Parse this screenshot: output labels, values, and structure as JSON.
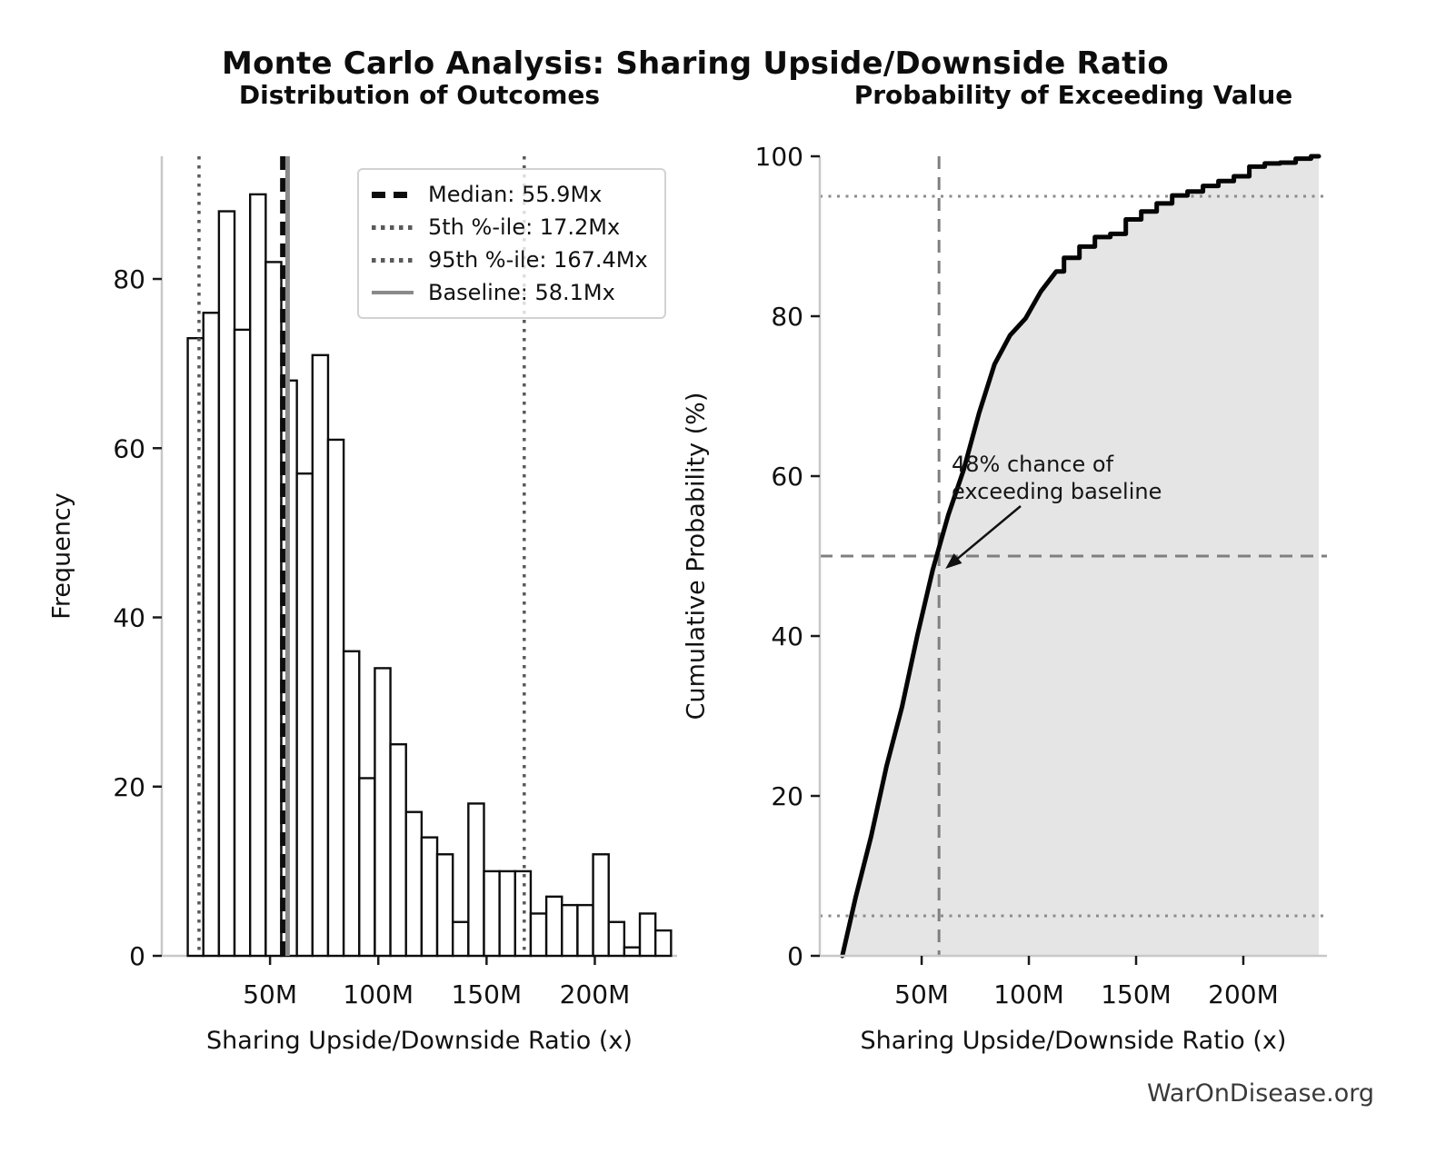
{
  "page": {
    "title": "Monte Carlo Analysis: Sharing Upside/Downside Ratio",
    "watermark": "WarOnDisease.org"
  },
  "colors": {
    "bar_fill": "#ffffff",
    "bar_edge": "#0d0d0d",
    "curve": "#050505",
    "cdf_fill": "#e5e5e6",
    "median_line": "#0d0d0d",
    "percentile_dotted": "#5a5a5a",
    "baseline_line": "#8a8a8a",
    "ref_dashed": "#7f7f7f",
    "ref_dotted": "#8c8c8c",
    "spine": "#c8c8c8",
    "tick": "#1a1a1a",
    "tick_label": "#111111"
  },
  "chart_data": [
    {
      "type": "bar",
      "title": "Distribution of Outcomes",
      "xlabel": "Sharing Upside/Downside Ratio (x)",
      "ylabel": "Frequency",
      "bins": {
        "start": 12,
        "width": 7.2,
        "unit": "M"
      },
      "frequencies": [
        73,
        76,
        88,
        74,
        90,
        82,
        68,
        57,
        71,
        61,
        36,
        21,
        34,
        25,
        17,
        14,
        12,
        4,
        18,
        10,
        10,
        10,
        5,
        7,
        6,
        6,
        12,
        4,
        1,
        5,
        3
      ],
      "total_samples": 1000,
      "xlim": [
        0,
        238
      ],
      "ylim": [
        0,
        94.5
      ],
      "xticks": [
        {
          "value": 50,
          "label": "50M"
        },
        {
          "value": 100,
          "label": "100M"
        },
        {
          "value": 150,
          "label": "150M"
        },
        {
          "value": 200,
          "label": "200M"
        }
      ],
      "yticks": [
        0,
        20,
        40,
        60,
        80
      ],
      "markers": [
        {
          "id": "median",
          "value": 55.9,
          "label": "Median: 55.9Mx",
          "style": "dashed-black"
        },
        {
          "id": "p5",
          "value": 17.2,
          "label": "5th %-ile: 17.2Mx",
          "style": "dotted-gray"
        },
        {
          "id": "p95",
          "value": 167.4,
          "label": "95th %-ile: 167.4Mx",
          "style": "dotted-gray"
        },
        {
          "id": "baseline",
          "value": 58.1,
          "label": "Baseline: 58.1Mx",
          "style": "solid-gray"
        }
      ],
      "legend_position": "upper-right",
      "grid": false
    },
    {
      "type": "line",
      "title": "Probability of Exceeding Value",
      "xlabel": "Sharing Upside/Downside Ratio (x)",
      "ylabel": "Cumulative Probability (%)",
      "x": [
        13,
        19.2,
        26.4,
        33.6,
        40.8,
        48,
        55.2,
        62.4,
        69.6,
        76.8,
        84,
        91.2,
        98.4,
        105.6,
        112.8,
        120,
        127.2,
        134.4,
        141.6,
        148.8,
        156,
        163.2,
        170.4,
        177.6,
        184.8,
        192,
        199.2,
        206.4,
        213.6,
        220.8,
        228,
        235.2
      ],
      "cumulative_percent": [
        0,
        7.3,
        14.9,
        23.7,
        31.1,
        40.1,
        48.3,
        55.1,
        60.8,
        67.9,
        74,
        77.6,
        79.7,
        83.1,
        85.6,
        87.3,
        88.7,
        89.9,
        90.3,
        92.1,
        93.1,
        94.1,
        95.1,
        95.6,
        96.3,
        96.9,
        97.5,
        98.7,
        99.1,
        99.2,
        99.7,
        100
      ],
      "xlim": [
        2.5,
        239
      ],
      "ylim": [
        0,
        100
      ],
      "xticks": [
        {
          "value": 50,
          "label": "50M"
        },
        {
          "value": 100,
          "label": "100M"
        },
        {
          "value": 150,
          "label": "150M"
        },
        {
          "value": 200,
          "label": "200M"
        }
      ],
      "yticks": [
        0,
        20,
        40,
        60,
        80,
        100
      ],
      "reference_lines": {
        "dotted_horizontal": [
          5,
          95
        ],
        "dashed_horizontal": 50,
        "dashed_vertical": 58.1
      },
      "annotation": {
        "text": "48% chance of\nexceeding baseline",
        "exceed_percent": 48,
        "at_x": 58.1,
        "at_y": 50
      },
      "area_fill": true,
      "grid": false
    }
  ]
}
